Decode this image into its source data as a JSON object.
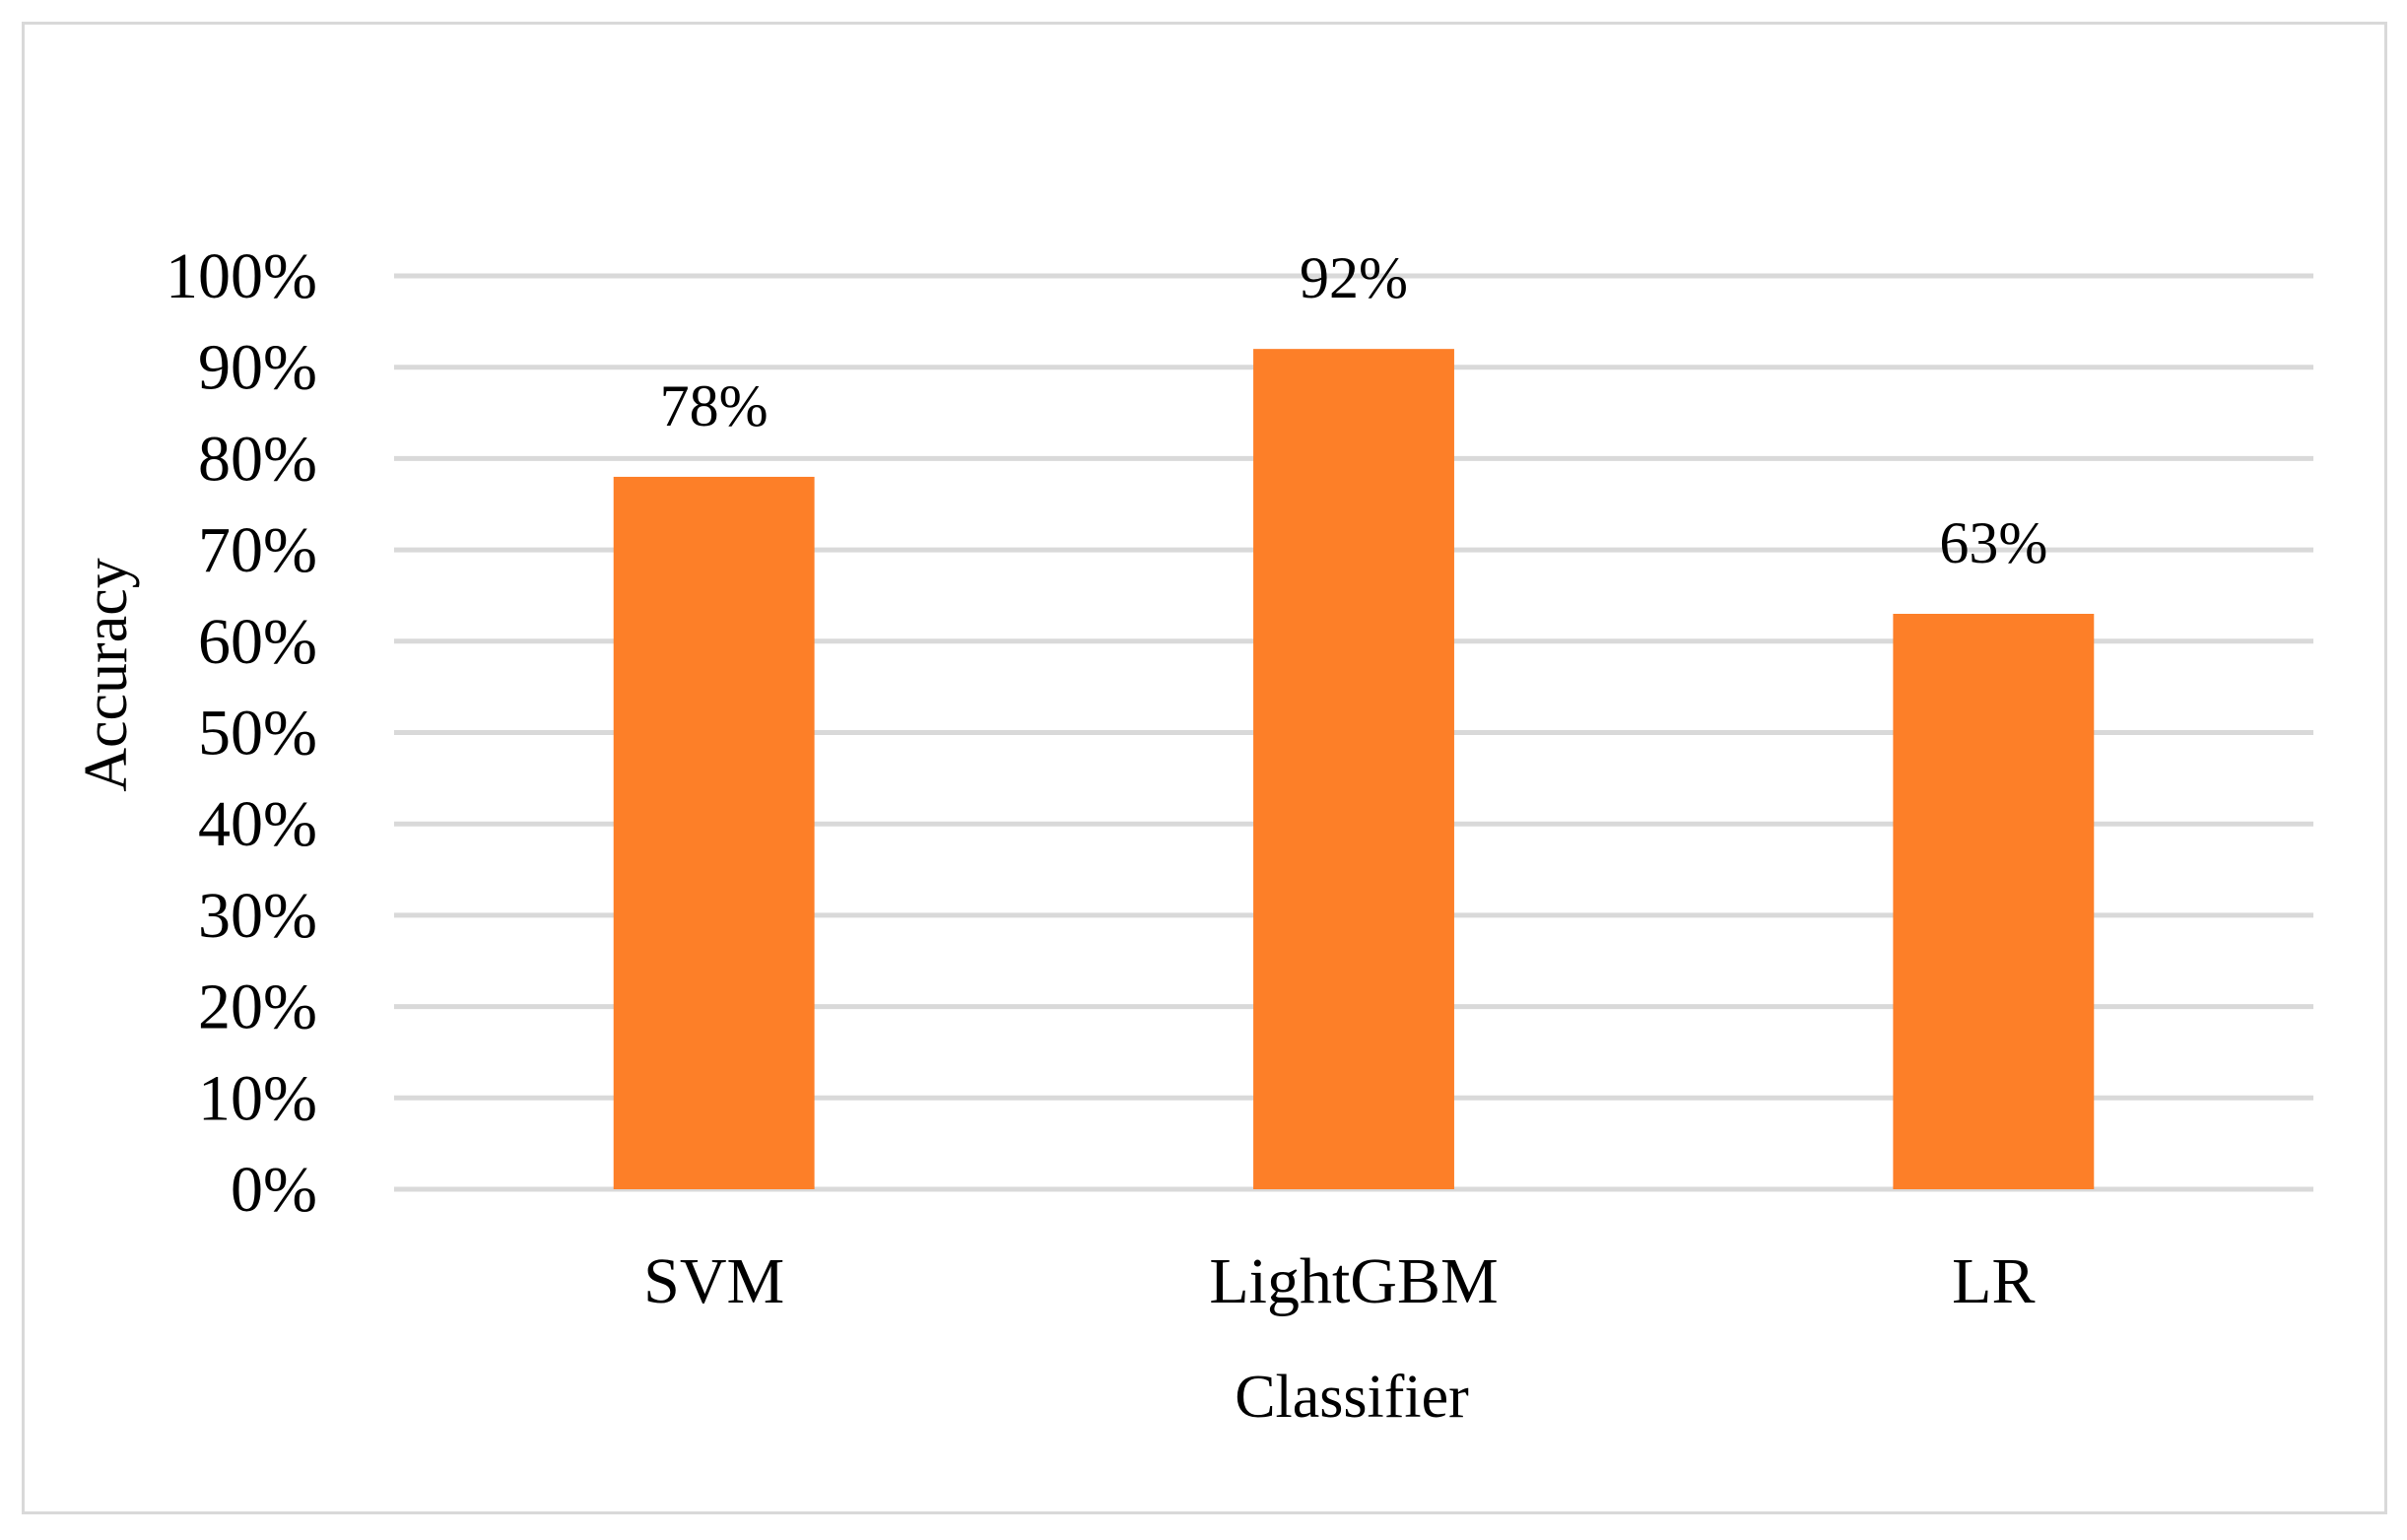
{
  "chart_data": {
    "type": "bar",
    "categories": [
      "SVM",
      "LightGBM",
      "LR"
    ],
    "values": [
      78,
      92,
      63
    ],
    "value_labels": [
      "78%",
      "92%",
      "63%"
    ],
    "title": "",
    "xlabel": "Classifier",
    "ylabel": "Accuracy",
    "ylim": [
      0,
      100
    ],
    "y_ticks": [
      0,
      10,
      20,
      30,
      40,
      50,
      60,
      70,
      80,
      90,
      100
    ],
    "y_tick_labels": [
      "0%",
      "10%",
      "20%",
      "30%",
      "40%",
      "50%",
      "60%",
      "70%",
      "80%",
      "90%",
      "100%"
    ],
    "grid": true,
    "legend": "none",
    "bar_color": "#FD7F28",
    "grid_color": "#D9D9D9"
  }
}
